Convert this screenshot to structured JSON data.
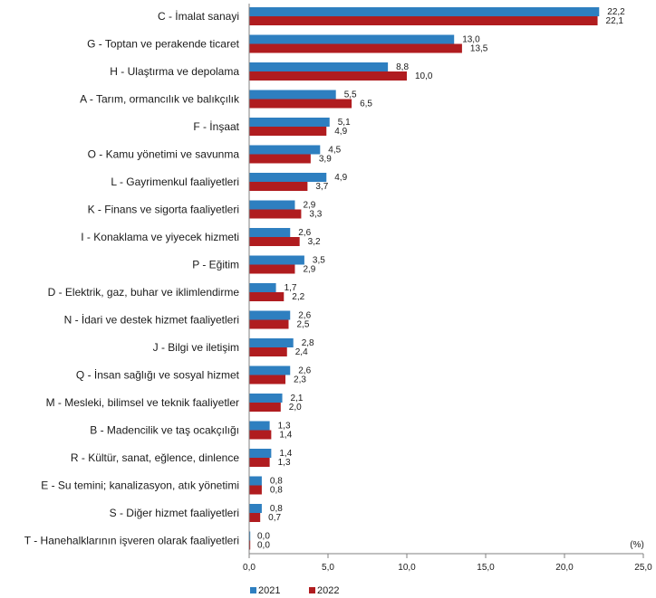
{
  "chart_data": {
    "type": "bar",
    "orientation": "horizontal",
    "categories": [
      "C - İmalat sanayi",
      "G - Toptan ve perakende ticaret",
      "H - Ulaştırma ve depolama",
      "A - Tarım, ormancılık ve balıkçılık",
      "F - İnşaat",
      "O - Kamu yönetimi ve savunma",
      "L - Gayrimenkul faaliyetleri",
      "K - Finans ve sigorta faaliyetleri",
      "I - Konaklama ve yiyecek hizmeti",
      "P - Eğitim",
      "D - Elektrik, gaz, buhar ve iklimlendirme",
      "N - İdari ve destek hizmet faaliyetleri",
      "J - Bilgi ve iletişim",
      "Q - İnsan sağlığı ve sosyal hizmet",
      "M - Mesleki, bilimsel ve teknik faaliyetler",
      "B - Madencilik ve taş ocakçılığı",
      "R - Kültür, sanat, eğlence, dinlence",
      "E - Su temini; kanalizasyon, atık yönetimi",
      "S - Diğer hizmet faaliyetleri",
      "T - Hanehalklarının işveren olarak faaliyetleri"
    ],
    "series": [
      {
        "name": "2021",
        "color": "#2e7fc0",
        "values": [
          22.2,
          13.0,
          8.8,
          5.5,
          5.1,
          4.5,
          4.9,
          2.9,
          2.6,
          3.5,
          1.7,
          2.6,
          2.8,
          2.6,
          2.1,
          1.3,
          1.4,
          0.8,
          0.8,
          0.0
        ],
        "labels": [
          "22,2",
          "13,0",
          "8,8",
          "5,5",
          "5,1",
          "4,5",
          "4,9",
          "2,9",
          "2,6",
          "3,5",
          "1,7",
          "2,6",
          "2,8",
          "2,6",
          "2,1",
          "1,3",
          "1,4",
          "0,8",
          "0,8",
          "0,0"
        ]
      },
      {
        "name": "2022",
        "color": "#b01c1f",
        "values": [
          22.1,
          13.5,
          10.0,
          6.5,
          4.9,
          3.9,
          3.7,
          3.3,
          3.2,
          2.9,
          2.2,
          2.5,
          2.4,
          2.3,
          2.0,
          1.4,
          1.3,
          0.8,
          0.7,
          0.0
        ],
        "labels": [
          "22,1",
          "13,5",
          "10,0",
          "6,5",
          "4,9",
          "3,9",
          "3,7",
          "3,3",
          "3,2",
          "2,9",
          "2,2",
          "2,5",
          "2,4",
          "2,3",
          "2,0",
          "1,4",
          "1,3",
          "0,8",
          "0,7",
          "0,0"
        ]
      }
    ],
    "xlim": [
      0,
      25
    ],
    "xticks": [
      0,
      5,
      10,
      15,
      20,
      25
    ],
    "xtick_labels": [
      "0,0",
      "5,0",
      "10,0",
      "15,0",
      "20,0",
      "25,0"
    ],
    "unit_label": "(%)",
    "title": "",
    "xlabel": "",
    "ylabel": "",
    "grid": false,
    "legend_position": "bottom-center"
  }
}
